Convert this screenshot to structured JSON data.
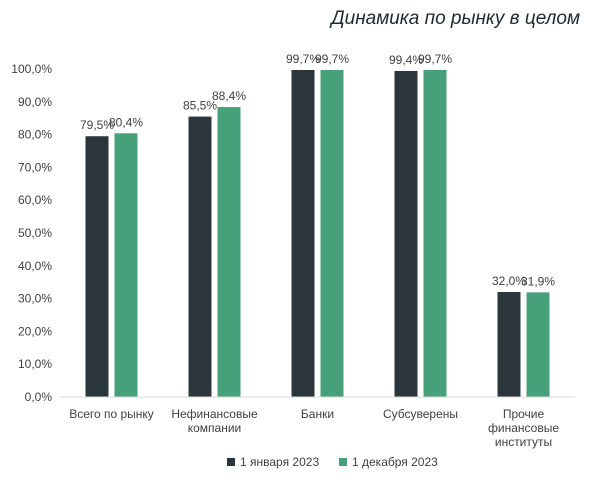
{
  "chart_data": {
    "type": "bar",
    "title": "Динамика по рынку в целом",
    "categories": [
      [
        "Всего по рынку"
      ],
      [
        "Нефинансовые",
        "компании"
      ],
      [
        "Банки"
      ],
      [
        "Субсуверены"
      ],
      [
        "Прочие",
        "финансовые",
        "институты"
      ]
    ],
    "series": [
      {
        "name": "1 января 2023",
        "color": "#2b363c",
        "values": [
          79.5,
          85.5,
          99.7,
          99.4,
          32.0
        ],
        "labels": [
          "79,5%",
          "85,5%",
          "99,7%",
          "99,4%",
          "32,0%"
        ]
      },
      {
        "name": "1 декабря 2023",
        "color": "#46a07a",
        "values": [
          80.4,
          88.4,
          99.7,
          99.7,
          31.9
        ],
        "labels": [
          "80,4%",
          "88,4%",
          "99,7%",
          "99,7%",
          "31,9%"
        ]
      }
    ],
    "ylim": [
      0,
      100
    ],
    "yticks": [
      0,
      10,
      20,
      30,
      40,
      50,
      60,
      70,
      80,
      90,
      100
    ],
    "ytick_labels": [
      "0,0%",
      "10,0%",
      "20,0%",
      "30,0%",
      "40,0%",
      "50,0%",
      "60,0%",
      "70,0%",
      "80,0%",
      "90,0%",
      "100,0%"
    ],
    "legend_position": "bottom",
    "grid": false
  }
}
